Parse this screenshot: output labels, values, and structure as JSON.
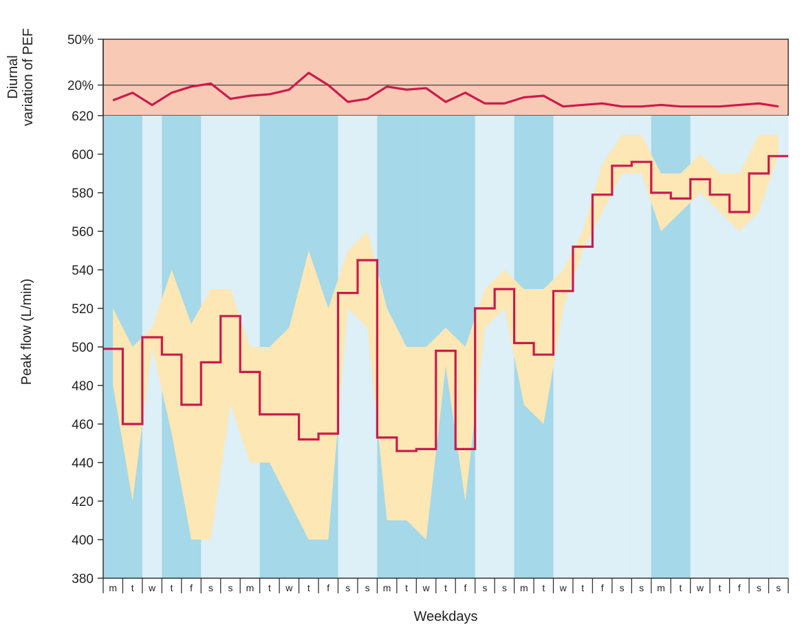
{
  "chart_data": {
    "type": "line",
    "xlabel": "Weekdays",
    "days": [
      "m",
      "t",
      "w",
      "t",
      "f",
      "s",
      "s",
      "m",
      "t",
      "w",
      "t",
      "f",
      "s",
      "s",
      "m",
      "t",
      "w",
      "t",
      "f",
      "s",
      "s",
      "m",
      "t",
      "w",
      "t",
      "f",
      "s",
      "s",
      "m",
      "t",
      "w",
      "t",
      "f",
      "s",
      "s"
    ],
    "top_panel": {
      "ylabel": "Diurnal variation of PEF",
      "tick_labels": [
        "50%",
        "20%",
        "620"
      ],
      "ylim_percent": [
        0,
        50
      ],
      "zones": [
        {
          "name": "high-variability",
          "from_percent": 0,
          "to_percent": 50,
          "color": "#f8c9b5"
        }
      ],
      "series": [
        {
          "name": "",
          "color": "#cc1a4a",
          "values": [
            10,
            15,
            7,
            15,
            19,
            21,
            11,
            13,
            14,
            17,
            28,
            20,
            9,
            11,
            19,
            17,
            18,
            9,
            15,
            8,
            8,
            12,
            13,
            6,
            7,
            8,
            6,
            6,
            7,
            6,
            6,
            6,
            7,
            8,
            6
          ]
        }
      ]
    },
    "main_panel": {
      "ylabel": "Peak flow (L/min)",
      "ylim": [
        380,
        620
      ],
      "yticks": [
        380,
        400,
        420,
        440,
        460,
        480,
        500,
        520,
        540,
        560,
        580,
        600
      ],
      "background_bands": {
        "colors": {
          "dark": "#a5d8e8",
          "light": "#ddeff7"
        },
        "pattern": [
          "dark",
          "dark",
          "light",
          "dark",
          "dark",
          "light",
          "light",
          "light",
          "dark",
          "dark",
          "dark",
          "dark",
          "light",
          "light",
          "dark",
          "dark",
          "dark",
          "dark",
          "dark",
          "light",
          "light",
          "dark",
          "dark",
          "light",
          "light",
          "light",
          "light",
          "light",
          "dark",
          "dark",
          "light",
          "light",
          "light",
          "light",
          "light"
        ]
      },
      "range_band": {
        "color": "#fde7b4",
        "upper": [
          520,
          500,
          510,
          540,
          512,
          530,
          530,
          500,
          500,
          510,
          550,
          520,
          550,
          560,
          520,
          500,
          500,
          510,
          500,
          530,
          540,
          530,
          530,
          540,
          560,
          595,
          610,
          610,
          590,
          590,
          600,
          590,
          590,
          610,
          610
        ],
        "lower": [
          480,
          420,
          500,
          455,
          400,
          400,
          470,
          440,
          440,
          420,
          400,
          400,
          520,
          510,
          410,
          410,
          400,
          490,
          420,
          510,
          520,
          470,
          460,
          520,
          550,
          570,
          590,
          590,
          560,
          570,
          580,
          570,
          560,
          570,
          600
        ]
      },
      "series": [
        {
          "name": "",
          "color": "#cc1a4a",
          "style": "step",
          "values": [
            499,
            460,
            505,
            496,
            470,
            492,
            516,
            487,
            465,
            465,
            452,
            455,
            528,
            545,
            453,
            446,
            447,
            498,
            447,
            520,
            530,
            502,
            496,
            529,
            552,
            579,
            594,
            596,
            580,
            577,
            587,
            579,
            570,
            590,
            599
          ]
        }
      ]
    }
  }
}
